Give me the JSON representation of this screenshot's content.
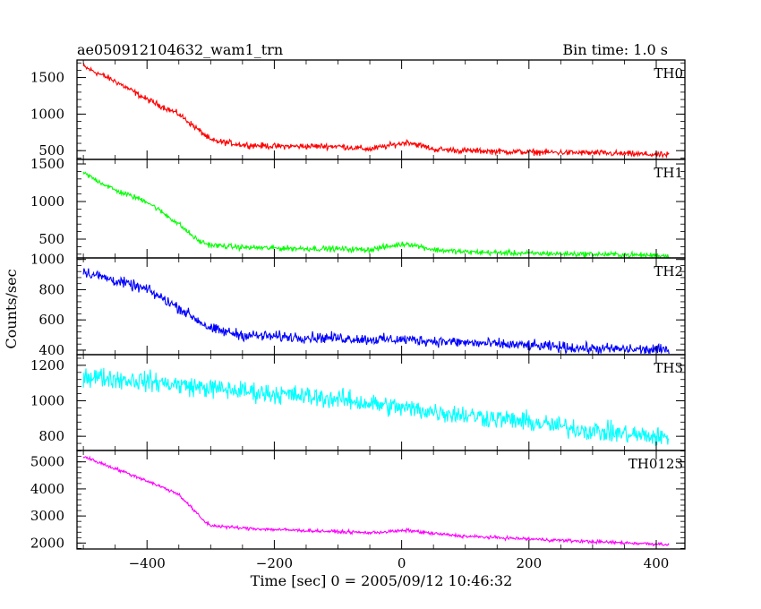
{
  "header": {
    "title": "ae050912104632_wam1_trn",
    "bin_time": "Bin time: 1.0 s"
  },
  "chart_data": {
    "type": "line",
    "xlabel": "Time [sec] 0 = 2005/09/12 10:46:32",
    "ylabel": "Counts/sec",
    "xlim": [
      -510,
      445
    ],
    "x_ticks": [
      -400,
      -200,
      0,
      200,
      400
    ],
    "grid": false,
    "panels": [
      {
        "name": "TH0",
        "color": "#ff0000",
        "ylim": [
          380,
          1740
        ],
        "y_ticks": [
          500,
          1000,
          1500
        ],
        "x": [
          -500,
          -450,
          -400,
          -350,
          -310,
          -300,
          -250,
          -200,
          -100,
          -50,
          0,
          10,
          50,
          100,
          200,
          300,
          420
        ],
        "values": [
          1650,
          1450,
          1200,
          1000,
          720,
          640,
          580,
          560,
          560,
          520,
          600,
          620,
          520,
          500,
          480,
          470,
          440
        ],
        "noise": 40
      },
      {
        "name": "TH1",
        "color": "#00ff00",
        "ylim": [
          250,
          1560
        ],
        "y_ticks": [
          500,
          1000,
          1500
        ],
        "x": [
          -500,
          -450,
          -400,
          -350,
          -320,
          -300,
          -250,
          -200,
          -100,
          -50,
          0,
          10,
          50,
          100,
          200,
          300,
          420
        ],
        "values": [
          1380,
          1150,
          1000,
          700,
          480,
          420,
          390,
          380,
          370,
          360,
          430,
          440,
          360,
          330,
          310,
          300,
          280
        ],
        "noise": 35
      },
      {
        "name": "TH2",
        "color": "#0000ff",
        "ylim": [
          370,
          1010
        ],
        "y_ticks": [
          400,
          600,
          800,
          1000
        ],
        "x": [
          -500,
          -450,
          -400,
          -350,
          -310,
          -300,
          -250,
          -200,
          -100,
          -50,
          0,
          10,
          50,
          100,
          200,
          300,
          420
        ],
        "values": [
          920,
          860,
          800,
          680,
          570,
          540,
          500,
          490,
          480,
          470,
          470,
          470,
          460,
          450,
          430,
          410,
          400
        ],
        "noise": 35
      },
      {
        "name": "TH3",
        "color": "#00ffff",
        "ylim": [
          720,
          1260
        ],
        "y_ticks": [
          800,
          1000,
          1200
        ],
        "x": [
          -500,
          -400,
          -300,
          -200,
          -100,
          0,
          100,
          200,
          300,
          420
        ],
        "values": [
          1140,
          1110,
          1070,
          1040,
          1010,
          960,
          920,
          880,
          830,
          790
        ],
        "noise": 55
      },
      {
        "name": "TH0123",
        "color": "#ff00ff",
        "ylim": [
          1780,
          5420
        ],
        "y_ticks": [
          2000,
          3000,
          4000,
          5000
        ],
        "x": [
          -500,
          -450,
          -400,
          -350,
          -310,
          -300,
          -250,
          -200,
          -100,
          -50,
          0,
          10,
          50,
          100,
          200,
          300,
          420
        ],
        "values": [
          5200,
          4750,
          4300,
          3800,
          2800,
          2650,
          2550,
          2500,
          2420,
          2380,
          2450,
          2470,
          2350,
          2250,
          2150,
          2050,
          1950
        ],
        "noise": 60
      }
    ]
  }
}
